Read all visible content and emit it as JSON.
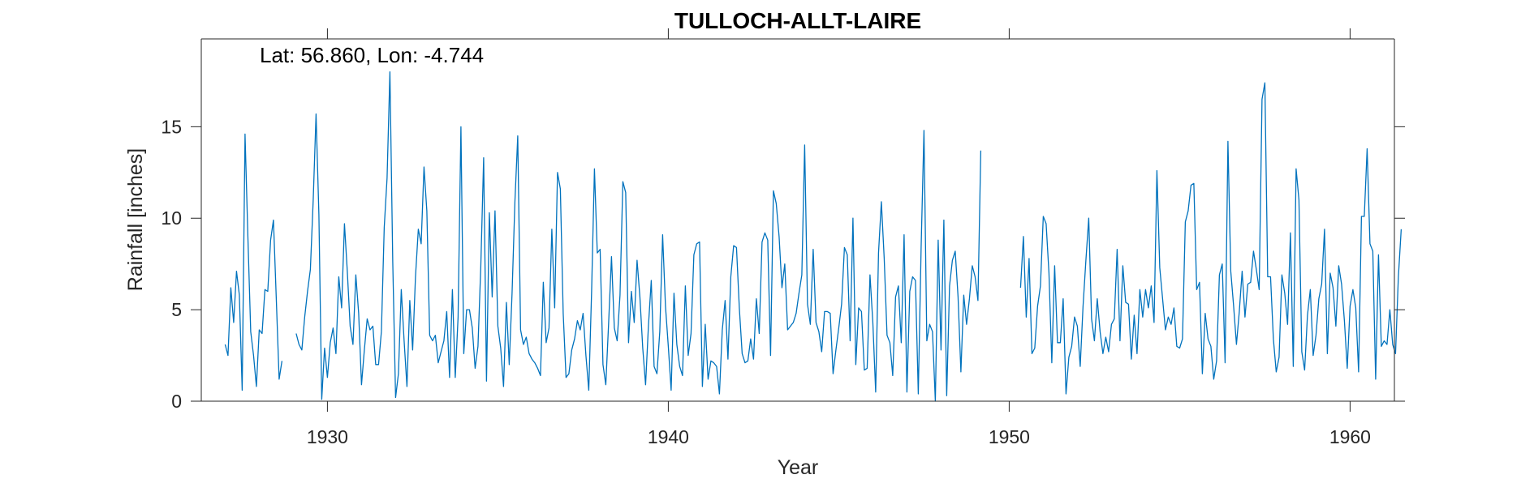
{
  "chart_data": {
    "type": "line",
    "title": "TULLOCH-ALLT-LAIRE",
    "annotation": "Lat: 56.860, Lon: -4.744",
    "xlabel": "Year",
    "ylabel": "Rainfall [inches]",
    "xlim": [
      1926.3,
      1961.3
    ],
    "ylim": [
      0,
      19.8
    ],
    "xticks": [
      1930,
      1940,
      1950,
      1960
    ],
    "yticks": [
      0,
      5,
      10,
      15
    ],
    "grid": false,
    "line_color": "#0072BD",
    "series": [
      {
        "x_start": 1927.0,
        "x_step": 0.083333,
        "note_gaps": "null values are missing months",
        "values": [
          3.1,
          2.5,
          6.2,
          4.3,
          7.1,
          5.8,
          0.6,
          14.6,
          9.0,
          3.8,
          2.5,
          0.8,
          3.9,
          3.7,
          6.1,
          6.0,
          8.8,
          9.9,
          5.6,
          1.2,
          2.2,
          null,
          null,
          null,
          null,
          3.7,
          3.1,
          2.8,
          4.6,
          6.0,
          7.2,
          11.0,
          15.7,
          10.2,
          0.1,
          2.9,
          1.3,
          3.2,
          4.0,
          2.6,
          6.8,
          5.1,
          9.7,
          7.1,
          4.1,
          3.1,
          6.9,
          4.8,
          0.9,
          2.8,
          4.5,
          3.9,
          4.1,
          2.0,
          2.0,
          3.8,
          9.5,
          12.2,
          18.0,
          7.6,
          0.2,
          1.5,
          6.1,
          3.3,
          0.8,
          5.5,
          2.8,
          6.8,
          9.4,
          8.6,
          12.8,
          10.4,
          3.6,
          3.3,
          3.6,
          2.1,
          2.7,
          3.3,
          4.9,
          1.3,
          6.1,
          1.3,
          4.6,
          15.0,
          2.6,
          5.0,
          5.0,
          4.0,
          1.8,
          3.0,
          7.4,
          13.3,
          1.1,
          10.3,
          5.7,
          10.4,
          4.1,
          2.9,
          0.8,
          5.4,
          2.0,
          5.9,
          10.9,
          14.5,
          3.9,
          3.1,
          3.5,
          2.6,
          2.3,
          2.1,
          1.8,
          1.4,
          6.5,
          3.2,
          4.0,
          9.4,
          5.1,
          12.5,
          11.6,
          4.8,
          1.3,
          1.5,
          2.8,
          3.4,
          4.4,
          3.9,
          4.8,
          2.5,
          0.6,
          6.0,
          12.7,
          8.1,
          8.3,
          2.0,
          0.9,
          4.3,
          7.9,
          4.0,
          3.3,
          5.8,
          12.0,
          11.4,
          3.2,
          6.0,
          4.3,
          7.7,
          5.7,
          2.9,
          0.9,
          4.1,
          6.6,
          1.9,
          1.5,
          3.8,
          9.1,
          5.2,
          3.0,
          0.6,
          5.9,
          3.1,
          1.9,
          1.4,
          6.3,
          2.5,
          3.7,
          8.0,
          8.6,
          8.7,
          0.8,
          4.2,
          1.2,
          2.2,
          2.1,
          1.9,
          0.4,
          3.9,
          5.5,
          2.3,
          6.8,
          8.5,
          8.4,
          5.1,
          2.6,
          2.1,
          2.2,
          3.4,
          2.3,
          5.6,
          3.7,
          8.7,
          9.2,
          8.8,
          2.5,
          11.5,
          10.8,
          9.0,
          6.2,
          7.5,
          3.9,
          4.1,
          4.3,
          4.8,
          5.9,
          6.9,
          14.0,
          5.3,
          4.2,
          8.3,
          4.3,
          3.8,
          2.7,
          4.9,
          4.9,
          4.8,
          1.5,
          2.8,
          4.0,
          5.3,
          8.4,
          8.0,
          3.3,
          10.0,
          2.0,
          5.1,
          4.9,
          1.7,
          1.8,
          6.9,
          4.3,
          0.5,
          8.1,
          10.9,
          7.8,
          3.6,
          3.2,
          1.4,
          5.7,
          6.3,
          3.2,
          9.1,
          0.5,
          6.0,
          6.8,
          6.6,
          0.4,
          8.4,
          14.8,
          3.3,
          4.2,
          3.8,
          0.0,
          8.8,
          2.8,
          9.9,
          0.3,
          6.3,
          7.7,
          8.2,
          5.7,
          1.6,
          5.8,
          4.2,
          5.6,
          7.4,
          6.8,
          5.5,
          13.7,
          null,
          null,
          null,
          null,
          null,
          null,
          null,
          null,
          null,
          null,
          null,
          null,
          null,
          6.2,
          9.0,
          4.6,
          7.8,
          2.6,
          2.9,
          5.2,
          6.3,
          10.1,
          9.7,
          7.0,
          2.1,
          7.4,
          3.2,
          3.2,
          5.6,
          0.4,
          2.4,
          3.0,
          4.6,
          4.1,
          1.9,
          5.2,
          7.7,
          10.0,
          4.5,
          3.3,
          5.6,
          3.8,
          2.6,
          3.5,
          2.7,
          4.2,
          4.5,
          8.3,
          3.3,
          7.4,
          5.4,
          5.3,
          2.3,
          4.7,
          2.6,
          6.1,
          4.6,
          6.1,
          5.1,
          6.3,
          4.3,
          12.6,
          7.3,
          5.6,
          3.9,
          4.6,
          4.2,
          5.1,
          3.0,
          2.9,
          3.4,
          9.8,
          10.4,
          11.8,
          11.9,
          6.1,
          6.5,
          1.5,
          4.8,
          3.4,
          3.0,
          1.2,
          2.2,
          6.9,
          7.5,
          2.1,
          14.2,
          7.1,
          5.2,
          3.1,
          4.9,
          7.1,
          4.6,
          6.4,
          6.5,
          8.2,
          7.2,
          6.1,
          16.5,
          17.4,
          6.8,
          6.8,
          3.4,
          1.6,
          2.4,
          6.9,
          5.9,
          4.2,
          9.2,
          1.9,
          12.7,
          11.0,
          2.7,
          1.7,
          4.7,
          6.1,
          2.5,
          3.6,
          5.6,
          6.4,
          9.4,
          2.6,
          7.0,
          6.2,
          4.1,
          7.4,
          6.4,
          4.4,
          1.8,
          5.2,
          6.1,
          5.1,
          1.6,
          10.1,
          10.1,
          13.8,
          8.6,
          8.2,
          1.2,
          8.0,
          3.0,
          3.3,
          3.1,
          5.0,
          3.1,
          2.6,
          6.8,
          9.4
        ]
      }
    ]
  }
}
